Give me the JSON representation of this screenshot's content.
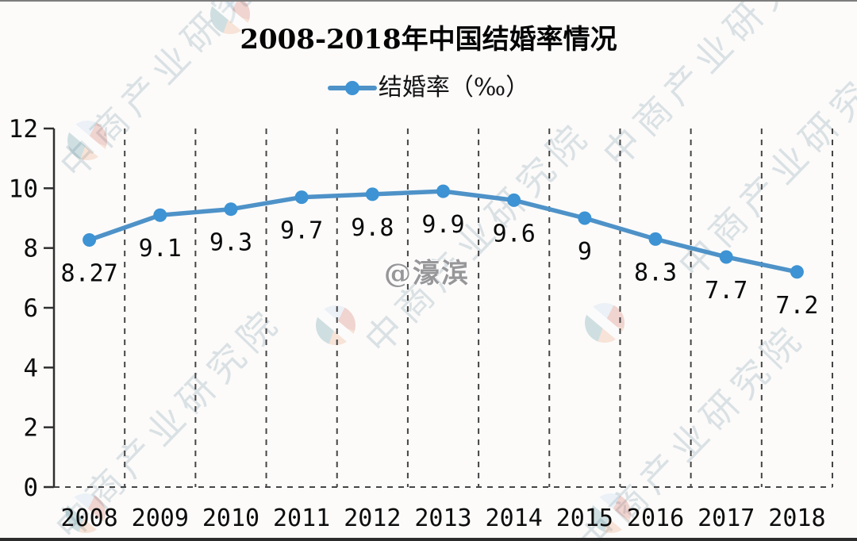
{
  "title": "2008-2018年中国结婚率情况",
  "legend": {
    "label": "结婚率（‰）"
  },
  "watermark": {
    "text": "中商产业研究院",
    "handle": "@濠滨"
  },
  "colors": {
    "line": "#4e92c8",
    "marker": "#3d93d3",
    "axis": "#2f2f2f",
    "grid": "#454545",
    "tick_text": "#0d0d0d"
  },
  "chart_data": {
    "type": "line",
    "title": "2008-2018年中国结婚率情况",
    "categories": [
      "2008",
      "2009",
      "2010",
      "2011",
      "2012",
      "2013",
      "2014",
      "2015",
      "2016",
      "2017",
      "2018"
    ],
    "series": [
      {
        "name": "结婚率（‰）",
        "values": [
          8.27,
          9.1,
          9.3,
          9.7,
          9.8,
          9.9,
          9.6,
          9,
          8.3,
          7.7,
          7.2
        ]
      }
    ],
    "point_labels": [
      "8.27",
      "9.1",
      "9.3",
      "9.7",
      "9.8",
      "9.9",
      "9.6",
      "9",
      "8.3",
      "7.7",
      "7.2"
    ],
    "xlabel": "",
    "ylabel": "",
    "ylim": [
      0,
      12
    ],
    "yticks": [
      0,
      2,
      4,
      6,
      8,
      10,
      12
    ],
    "grid": "vertical-dashed",
    "legend_position": "top-center",
    "unit": "‰"
  }
}
